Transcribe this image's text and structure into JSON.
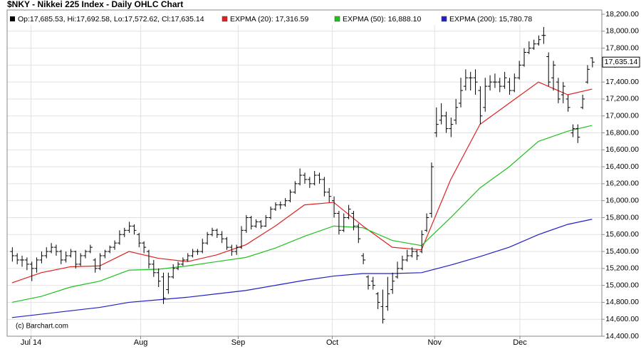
{
  "chart_data": {
    "type": "ohlc",
    "title": "$NKY - Nikkei 225 Index - Daily OHLC Chart",
    "ohlc_label": "Op:17,685.53, Hi:17,692.58, Lo:17,572.62, Cl:17,635.14",
    "last_label": "17,635.14",
    "last_value": 17635.14,
    "credit": "(c) Barchart.com",
    "bar_color": "#000000",
    "grid": true,
    "ylim": [
      14400,
      18200
    ],
    "xlim": [
      -1,
      121
    ],
    "yticks": [
      {
        "value": 14400,
        "label": "14,400.00"
      },
      {
        "value": 14600,
        "label": "14,600.00"
      },
      {
        "value": 14800,
        "label": "14,800.00"
      },
      {
        "value": 15000,
        "label": "15,000.00"
      },
      {
        "value": 15200,
        "label": "15,200.00"
      },
      {
        "value": 15400,
        "label": "15,400.00"
      },
      {
        "value": 15600,
        "label": "15,600.00"
      },
      {
        "value": 15800,
        "label": "15,800.00"
      },
      {
        "value": 16000,
        "label": "16,000.00"
      },
      {
        "value": 16200,
        "label": "16,200.00"
      },
      {
        "value": 16400,
        "label": "16,400.00"
      },
      {
        "value": 16600,
        "label": "16,600.00"
      },
      {
        "value": 16800,
        "label": "16,800.00"
      },
      {
        "value": 17000,
        "label": "17,000.00"
      },
      {
        "value": 17200,
        "label": "17,200.00"
      },
      {
        "value": 17400,
        "label": "17,400.00"
      },
      {
        "value": 17600,
        "label": "17,600.00"
      },
      {
        "value": 17800,
        "label": "17,800.00"
      },
      {
        "value": 18000,
        "label": "18,000.00"
      },
      {
        "value": 18200,
        "label": "18,200.00"
      }
    ],
    "xticks": [
      {
        "value": 3.9,
        "label": "Jul 14"
      },
      {
        "value": 26.4,
        "label": "Aug"
      },
      {
        "value": 46.4,
        "label": "Sep"
      },
      {
        "value": 65.7,
        "label": "Oct"
      },
      {
        "value": 86.7,
        "label": "Nov"
      },
      {
        "value": 104.2,
        "label": "Dec"
      }
    ],
    "ohlc": [
      [
        15400,
        15450,
        15280,
        15350
      ],
      [
        15350,
        15380,
        15250,
        15300
      ],
      [
        15300,
        15350,
        15220,
        15300
      ],
      [
        15300,
        15330,
        15180,
        15250
      ],
      [
        15250,
        15280,
        15050,
        15200
      ],
      [
        15200,
        15330,
        15150,
        15300
      ],
      [
        15300,
        15400,
        15260,
        15350
      ],
      [
        15350,
        15450,
        15320,
        15400
      ],
      [
        15400,
        15500,
        15380,
        15450
      ],
      [
        15450,
        15480,
        15350,
        15400
      ],
      [
        15400,
        15420,
        15250,
        15300
      ],
      [
        15300,
        15400,
        15270,
        15350
      ],
      [
        15350,
        15430,
        15330,
        15400
      ],
      [
        15400,
        15410,
        15200,
        15250
      ],
      [
        15250,
        15380,
        15230,
        15350
      ],
      [
        15350,
        15420,
        15320,
        15400
      ],
      [
        15400,
        15480,
        15380,
        15450
      ],
      [
        15300,
        15320,
        15150,
        15200
      ],
      [
        15200,
        15380,
        15180,
        15350
      ],
      [
        15350,
        15420,
        15320,
        15400
      ],
      [
        15400,
        15470,
        15380,
        15450
      ],
      [
        15450,
        15530,
        15420,
        15500
      ],
      [
        15500,
        15650,
        15480,
        15600
      ],
      [
        15600,
        15680,
        15570,
        15650
      ],
      [
        15650,
        15750,
        15620,
        15700
      ],
      [
        15700,
        15720,
        15600,
        15650
      ],
      [
        15600,
        15620,
        15450,
        15500
      ],
      [
        15500,
        15520,
        15380,
        15450
      ],
      [
        15400,
        15420,
        15200,
        15250
      ],
      [
        15250,
        15300,
        15100,
        15150
      ],
      [
        15150,
        15200,
        14980,
        15050
      ],
      [
        15100,
        15150,
        14780,
        14850
      ],
      [
        14950,
        15150,
        14900,
        15100
      ],
      [
        15100,
        15250,
        15080,
        15200
      ],
      [
        15200,
        15280,
        15180,
        15250
      ],
      [
        15250,
        15330,
        15230,
        15300
      ],
      [
        15300,
        15380,
        15280,
        15350
      ],
      [
        15350,
        15430,
        15330,
        15400
      ],
      [
        15400,
        15430,
        15360,
        15400
      ],
      [
        15400,
        15550,
        15380,
        15500
      ],
      [
        15500,
        15630,
        15480,
        15600
      ],
      [
        15600,
        15680,
        15580,
        15650
      ],
      [
        15650,
        15670,
        15560,
        15600
      ],
      [
        15600,
        15640,
        15500,
        15550
      ],
      [
        15550,
        15570,
        15420,
        15450
      ],
      [
        15450,
        15480,
        15350,
        15400
      ],
      [
        15400,
        15480,
        15360,
        15450
      ],
      [
        15450,
        15700,
        15430,
        15650
      ],
      [
        15650,
        15830,
        15620,
        15800
      ],
      [
        15800,
        15820,
        15660,
        15700
      ],
      [
        15700,
        15780,
        15680,
        15750
      ],
      [
        15750,
        15770,
        15670,
        15700
      ],
      [
        15700,
        15830,
        15690,
        15800
      ],
      [
        15800,
        15930,
        15780,
        15900
      ],
      [
        15900,
        15980,
        15880,
        15950
      ],
      [
        15950,
        15990,
        15900,
        15950
      ],
      [
        15950,
        16030,
        15930,
        16000
      ],
      [
        16000,
        16130,
        15980,
        16100
      ],
      [
        16100,
        16230,
        16080,
        16200
      ],
      [
        16200,
        16380,
        16180,
        16300
      ],
      [
        16300,
        16330,
        16200,
        16250
      ],
      [
        16250,
        16280,
        16150,
        16200
      ],
      [
        16200,
        16350,
        16180,
        16300
      ],
      [
        16300,
        16330,
        16200,
        16250
      ],
      [
        16250,
        16280,
        16050,
        16100
      ],
      [
        16100,
        16150,
        15980,
        16050
      ],
      [
        16000,
        16050,
        15800,
        15850
      ],
      [
        15850,
        15880,
        15600,
        15650
      ],
      [
        15650,
        15850,
        15630,
        15800
      ],
      [
        15800,
        15950,
        15780,
        15900
      ],
      [
        15850,
        15880,
        15650,
        15700
      ],
      [
        15700,
        15730,
        15500,
        15550
      ],
      [
        15350,
        15380,
        15250,
        15300
      ],
      [
        15100,
        15120,
        14950,
        15000
      ],
      [
        15050,
        15100,
        14950,
        15000
      ],
      [
        14900,
        14920,
        14720,
        14800
      ],
      [
        14750,
        14950,
        14550,
        14600
      ],
      [
        14750,
        15100,
        14700,
        14900
      ],
      [
        14950,
        15150,
        14900,
        15050
      ],
      [
        15100,
        15280,
        15080,
        15200
      ],
      [
        15200,
        15350,
        15180,
        15300
      ],
      [
        15300,
        15420,
        15280,
        15350
      ],
      [
        15350,
        15450,
        15330,
        15400
      ],
      [
        15400,
        15420,
        15300,
        15350
      ],
      [
        15400,
        15650,
        15380,
        15600
      ],
      [
        15650,
        15850,
        15630,
        15800
      ],
      [
        15850,
        16450,
        15800,
        16400
      ],
      [
        16800,
        17100,
        16750,
        16900
      ],
      [
        16950,
        17150,
        16900,
        17000
      ],
      [
        17000,
        17050,
        16800,
        16850
      ],
      [
        16850,
        16980,
        16750,
        16900
      ],
      [
        16950,
        17200,
        16900,
        17100
      ],
      [
        17150,
        17450,
        17100,
        17300
      ],
      [
        17350,
        17550,
        17300,
        17450
      ],
      [
        17450,
        17520,
        17300,
        17450
      ],
      [
        17450,
        17550,
        17250,
        17400
      ],
      [
        17300,
        17350,
        16900,
        17000
      ],
      [
        17100,
        17450,
        17050,
        17350
      ],
      [
        17350,
        17480,
        17300,
        17400
      ],
      [
        17400,
        17500,
        17330,
        17400
      ],
      [
        17400,
        17450,
        17280,
        17350
      ],
      [
        17350,
        17520,
        17320,
        17450
      ],
      [
        17400,
        17450,
        17250,
        17300
      ],
      [
        17300,
        17500,
        17280,
        17450
      ],
      [
        17450,
        17650,
        17430,
        17600
      ],
      [
        17600,
        17800,
        17580,
        17750
      ],
      [
        17750,
        17880,
        17730,
        17800
      ],
      [
        17800,
        17900,
        17780,
        17850
      ],
      [
        17850,
        17950,
        17830,
        17900
      ],
      [
        17950,
        18050,
        17850,
        17950
      ],
      [
        17700,
        17750,
        17350,
        17400
      ],
      [
        17450,
        17650,
        17300,
        17600
      ],
      [
        17400,
        17450,
        17150,
        17200
      ],
      [
        17250,
        17400,
        17150,
        17350
      ],
      [
        17200,
        17250,
        17050,
        17100
      ],
      [
        16800,
        16900,
        16750,
        16850
      ],
      [
        16850,
        16900,
        16680,
        16750
      ],
      [
        17100,
        17250,
        17080,
        17200
      ],
      [
        17400,
        17600,
        17380,
        17550
      ],
      [
        17685.53,
        17692.58,
        17572.62,
        17635.14
      ]
    ],
    "series": [
      {
        "name": "EXPMA (20): 17,316.59",
        "color": "#e02020",
        "x": [
          0,
          6,
          12,
          18,
          24,
          30,
          36,
          42,
          48,
          54,
          60,
          66,
          72,
          78,
          84,
          90,
          96,
          102,
          108,
          114,
          119
        ],
        "values": [
          15030,
          15150,
          15220,
          15230,
          15400,
          15320,
          15280,
          15360,
          15480,
          15700,
          15950,
          15980,
          15700,
          15450,
          15420,
          16250,
          16900,
          17150,
          17400,
          17250,
          17316.59
        ]
      },
      {
        "name": "EXPMA (50): 16,888.10",
        "color": "#20c020",
        "x": [
          0,
          6,
          12,
          18,
          24,
          30,
          36,
          42,
          48,
          54,
          60,
          66,
          72,
          78,
          84,
          90,
          96,
          102,
          108,
          114,
          119
        ],
        "values": [
          14800,
          14870,
          14980,
          15050,
          15180,
          15190,
          15230,
          15280,
          15330,
          15440,
          15580,
          15700,
          15680,
          15530,
          15470,
          15800,
          16150,
          16400,
          16700,
          16820,
          16888.1
        ]
      },
      {
        "name": "EXPMA (200): 15,780.78",
        "color": "#2020c8",
        "x": [
          0,
          6,
          12,
          18,
          24,
          30,
          36,
          42,
          48,
          54,
          60,
          66,
          72,
          78,
          84,
          90,
          96,
          102,
          108,
          114,
          119
        ],
        "values": [
          14620,
          14660,
          14700,
          14740,
          14800,
          14830,
          14860,
          14900,
          14940,
          15000,
          15060,
          15110,
          15140,
          15140,
          15150,
          15240,
          15340,
          15450,
          15600,
          15720,
          15780.78
        ]
      }
    ]
  }
}
